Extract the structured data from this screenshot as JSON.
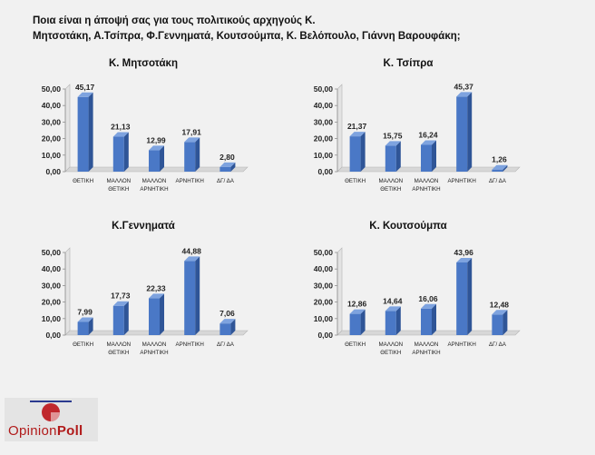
{
  "question": {
    "line1": "Ποια είναι η άποψή σας για τους πολιτικούς αρχηγούς Κ.",
    "line2": "Μητσοτάκη, Α.Τσίπρα, Φ.Γεννηματά, Κουτσούμπα, Κ. Βελόπουλο, Γιάννη Βαρουφάκη;"
  },
  "logo": {
    "part1": "Opinion",
    "part2": "Poll",
    "bar_color": "#2b3a8f",
    "accent_color": "#c0282d"
  },
  "bar_color": "#4a78c6",
  "chart_data": [
    {
      "type": "bar",
      "title": "Κ. Μητσοτάκη",
      "categories": [
        [
          "ΘΕΤΙΚΗ"
        ],
        [
          "ΜΑΛΛΟΝ",
          "ΘΕΤΙΚΗ"
        ],
        [
          "ΜΑΛΛΟΝ",
          "ΑΡΝΗΤΙΚΗ"
        ],
        [
          "ΑΡΝΗΤΙΚΗ"
        ],
        [
          "ΔΓ/ ΔΑ"
        ]
      ],
      "values": [
        45.17,
        21.13,
        12.99,
        17.91,
        2.8
      ],
      "value_labels": [
        "45,17",
        "21,13",
        "12,99",
        "17,91",
        "2,80"
      ],
      "ylim": [
        0,
        50
      ],
      "yticks": [
        "0,00",
        "10,00",
        "20,00",
        "30,00",
        "40,00",
        "50,00"
      ],
      "grid": false
    },
    {
      "type": "bar",
      "title": "Κ. Τσίπρα",
      "categories": [
        [
          "ΘΕΤΙΚΗ"
        ],
        [
          "ΜΑΛΛΟΝ",
          "ΘΕΤΙΚΗ"
        ],
        [
          "ΜΑΛΛΟΝ",
          "ΑΡΝΗΤΙΚΗ"
        ],
        [
          "ΑΡΝΗΤΙΚΗ"
        ],
        [
          "ΔΓ/ ΔΑ"
        ]
      ],
      "values": [
        21.37,
        15.75,
        16.24,
        45.37,
        1.26
      ],
      "value_labels": [
        "21,37",
        "15,75",
        "16,24",
        "45,37",
        "1,26"
      ],
      "ylim": [
        0,
        50
      ],
      "yticks": [
        "0,00",
        "10,00",
        "20,00",
        "30,00",
        "40,00",
        "50,00"
      ],
      "grid": false
    },
    {
      "type": "bar",
      "title": "Κ.Γεννηματά",
      "categories": [
        [
          "ΘΕΤΙΚΗ"
        ],
        [
          "ΜΑΛΛΟΝ",
          "ΘΕΤΙΚΗ"
        ],
        [
          "ΜΑΛΛΟΝ",
          "ΑΡΝΗΤΙΚΗ"
        ],
        [
          "ΑΡΝΗΤΙΚΗ"
        ],
        [
          "ΔΓ/ ΔΑ"
        ]
      ],
      "values": [
        7.99,
        17.73,
        22.33,
        44.88,
        7.06
      ],
      "value_labels": [
        "7,99",
        "17,73",
        "22,33",
        "44,88",
        "7,06"
      ],
      "ylim": [
        0,
        50
      ],
      "yticks": [
        "0,00",
        "10,00",
        "20,00",
        "30,00",
        "40,00",
        "50,00"
      ],
      "grid": false
    },
    {
      "type": "bar",
      "title": "Κ.  Κουτσούμπα",
      "categories": [
        [
          "ΘΕΤΙΚΗ"
        ],
        [
          "ΜΑΛΛΟΝ",
          "ΘΕΤΙΚΗ"
        ],
        [
          "ΜΑΛΛΟΝ",
          "ΑΡΝΗΤΙΚΗ"
        ],
        [
          "ΑΡΝΗΤΙΚΗ"
        ],
        [
          "ΔΓ/ ΔΑ"
        ]
      ],
      "values": [
        12.86,
        14.64,
        16.06,
        43.96,
        12.48
      ],
      "value_labels": [
        "12,86",
        "14,64",
        "16,06",
        "43,96",
        "12,48"
      ],
      "ylim": [
        0,
        50
      ],
      "yticks": [
        "0,00",
        "10,00",
        "20,00",
        "30,00",
        "40,00",
        "50,00"
      ],
      "grid": false
    }
  ]
}
